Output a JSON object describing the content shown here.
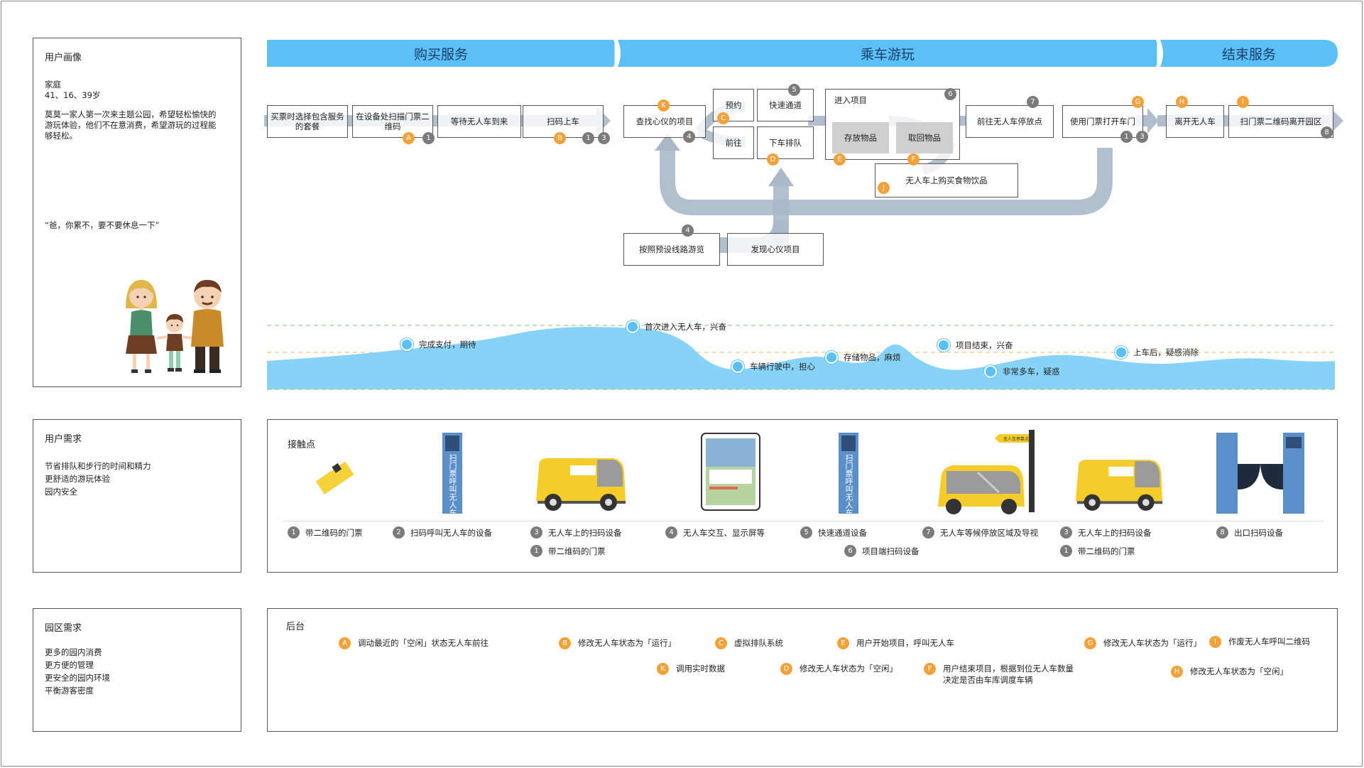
{
  "persona": {
    "title": "用户画像",
    "type": "家庭",
    "ages": "41、16、39岁",
    "desc": "莫莫一家人第一次来主题公园，希望轻松愉快的游玩体验，他们不在意消费，希望游玩的过程能够轻松。",
    "quote": "“爸，你累不，要不要休息一下”"
  },
  "user_needs": {
    "title": "用户需求",
    "items": [
      "节省排队和步行的时间和精力",
      "更舒适的游玩体验",
      "园内安全"
    ]
  },
  "park_needs": {
    "title": "园区需求",
    "items": [
      "更多的园内消费",
      "更方便的管理",
      "更安全的园内环境",
      "平衡游客密度"
    ]
  },
  "phases": [
    "购买服务",
    "乘车游玩",
    "结束服务"
  ],
  "steps": {
    "s1": "买票时选择包含服务的套餐",
    "s2": "在设备处扫描门票二维码",
    "s3": "等待无人车到来",
    "s4": "扫码上车",
    "s5": "查找心仪的项目",
    "s6": "预约",
    "s7": "快速通道",
    "s8": "前往",
    "s9": "下车排队",
    "s10": "进入项目",
    "s11": "存放物品",
    "s12": "取回物品",
    "s13": "无人车上购买食物饮品",
    "s14": "前往无人车停放点",
    "s15": "使用门票打开车门",
    "s16": "离开无人车",
    "s17": "扫门票二维码离开园区",
    "s18": "按照预设线路游览",
    "s19": "发现心仪项目"
  },
  "badges": {
    "n1": "1",
    "n3": "3",
    "n4": "4",
    "n5": "5",
    "n6": "6",
    "n7": "7",
    "n8": "8",
    "A": "A",
    "B": "B",
    "C": "C",
    "D": "D",
    "E": "E",
    "F": "F",
    "G": "G",
    "H": "H",
    "I": "I",
    "J": "J",
    "K": "K"
  },
  "emotions": [
    "完成支付，期待",
    "首次进入无人车，兴奋",
    "车辆行驶中，担心",
    "存储物品，麻烦",
    "项目结束，兴奋",
    "非常多车，疑惑",
    "上车后，疑感消除"
  ],
  "touchpoints": {
    "title": "接触点",
    "kiosk_text": "扫门票呼叫无人车",
    "sign_text": "无人车停靠点",
    "items": [
      {
        "num": "1",
        "label": "带二维码的门票"
      },
      {
        "num": "2",
        "label": "扫码呼叫无人车的设备"
      },
      {
        "num": "3",
        "label": "无人车上的扫码设备"
      },
      {
        "num": "1",
        "label": "带二维码的门票"
      },
      {
        "num": "4",
        "label": "无人车交互、显示屏等"
      },
      {
        "num": "5",
        "label": "快速通道设备"
      },
      {
        "num": "6",
        "label": "项目端扫码设备"
      },
      {
        "num": "7",
        "label": "无人车等候停放区域及导视"
      },
      {
        "num": "3",
        "label": "无人车上的扫码设备"
      },
      {
        "num": "1",
        "label": "带二维码的门票"
      },
      {
        "num": "8",
        "label": "出口扫码设备"
      }
    ]
  },
  "backend": {
    "title": "后台",
    "items": [
      {
        "letter": "A",
        "label": "调动最近的「空闲」状态无人车前往"
      },
      {
        "letter": "B",
        "label": "修改无人车状态为「运行」"
      },
      {
        "letter": "C",
        "label": "虚拟排队系统"
      },
      {
        "letter": "E",
        "label": "用户开始项目，呼叫无人车"
      },
      {
        "letter": "G",
        "label": "修改无人车状态为「运行」"
      },
      {
        "letter": "I",
        "label": "作废无人车呼叫二维码"
      },
      {
        "letter": "K",
        "label": "调用实时数据"
      },
      {
        "letter": "D",
        "label": "修改无人车状态为「空闲」"
      },
      {
        "letter": "F",
        "label": "用户结束项目，根据到位无人车数量决定是否由车库调度车辆"
      },
      {
        "letter": "H",
        "label": "修改无人车状态为「空闲」"
      }
    ]
  },
  "colors": {
    "phase_bar": "#5bc0f5",
    "flow_arrow": "#aab8c8",
    "orange": "#f5a13a",
    "badge_gray": "#7b7b7b",
    "emotion_fill": "#87d3f8"
  }
}
